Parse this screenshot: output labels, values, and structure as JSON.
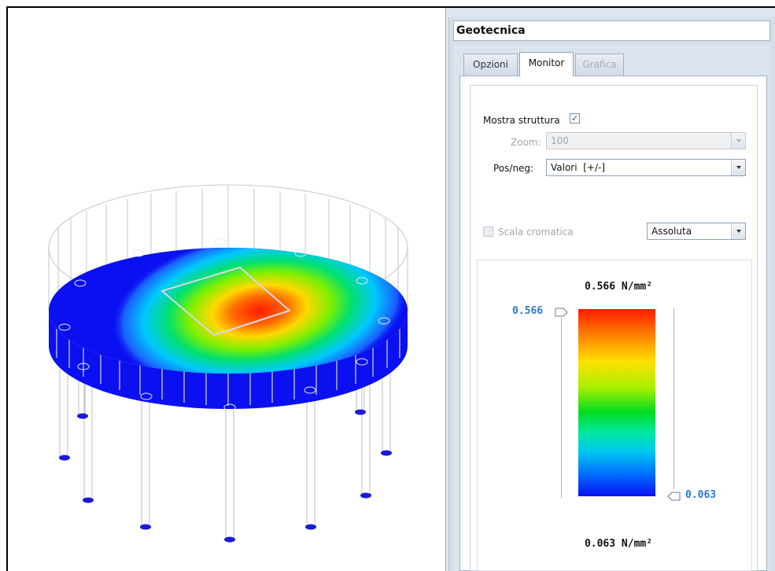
{
  "panel": {
    "title": "Geotecnica",
    "tabs": [
      {
        "label": "Opzioni",
        "active": false,
        "enabled": true
      },
      {
        "label": "Monitor",
        "active": true,
        "enabled": true
      },
      {
        "label": "Grafica",
        "active": false,
        "enabled": false
      }
    ],
    "monitor": {
      "show_structure": {
        "label": "Mostra struttura",
        "checked": true
      },
      "zoom": {
        "label": "Zoom:",
        "value": "100",
        "enabled": false
      },
      "posneg": {
        "label": "Pos/neg:",
        "value": "Valori  [+/-]"
      },
      "color_scale": {
        "label": "Scala cromatica",
        "checked": false,
        "enabled": false
      },
      "scale_mode": {
        "value": "Assoluta"
      }
    },
    "legend": {
      "max_title": "0.566 N/mm²",
      "min_title": "0.063 N/mm²",
      "max_marker": "0.566",
      "min_marker": "0.063",
      "gradient_colors": [
        "#ff1a00",
        "#ff8000",
        "#ffe000",
        "#a8f000",
        "#00dc20",
        "#00e8a0",
        "#00c8f0",
        "#0070ff",
        "#0a10f0"
      ]
    }
  },
  "model_view": {
    "description_icon": "raft-foundation-3d",
    "pile_count": 14,
    "contour_colors": {
      "low": "#0a10f0",
      "high": "#ff1a00"
    }
  }
}
